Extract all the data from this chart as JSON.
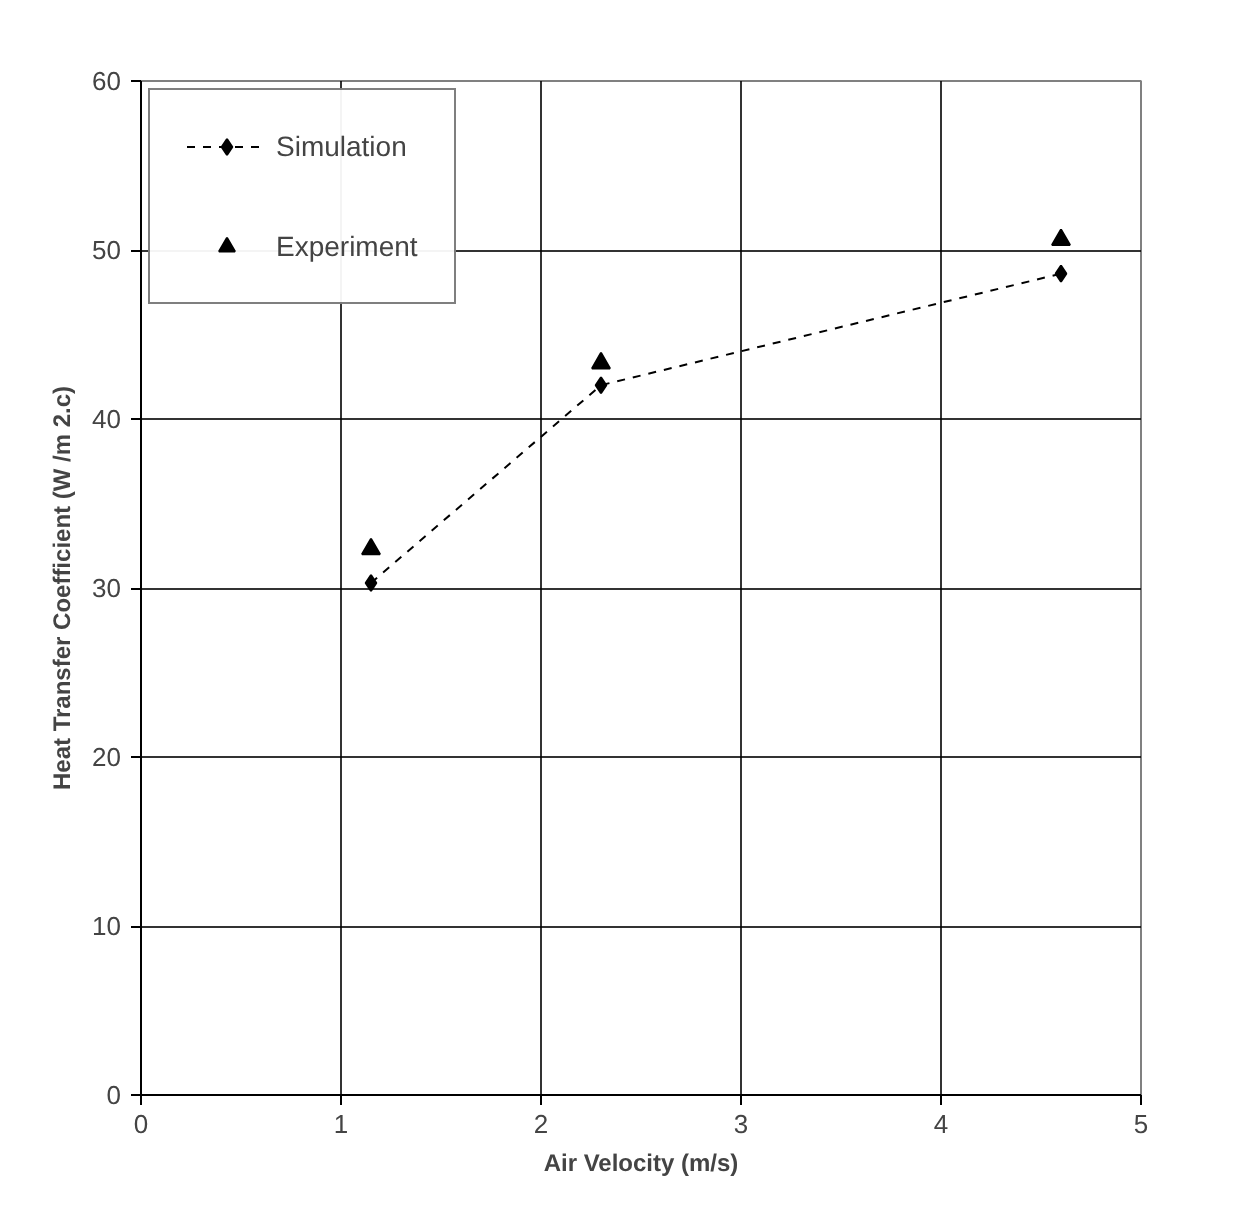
{
  "chart_data": {
    "type": "line",
    "xlabel": "Air Velocity (m/s)",
    "ylabel": "Heat Transfer Coefficient (W /m 2.c)",
    "xlim": [
      0,
      5
    ],
    "xticks": [
      0,
      1,
      2,
      3,
      4,
      5
    ],
    "ylim": [
      0,
      60
    ],
    "yticks": [
      0,
      10,
      20,
      30,
      40,
      50,
      60
    ],
    "grid": true,
    "legend": "top left",
    "series": [
      {
        "name": "Simulation",
        "color": "#000000",
        "marker": "diamond",
        "line_style": "dashed",
        "x": [
          1.15,
          2.3,
          4.6
        ],
        "values": [
          30.3,
          42.0,
          48.6
        ]
      },
      {
        "name": "Experiment",
        "type": "scatter",
        "color": "#000000",
        "marker": "triangle",
        "x": [
          1.15,
          2.3,
          4.6
        ],
        "values": [
          32.3,
          43.3,
          50.6
        ]
      }
    ]
  }
}
